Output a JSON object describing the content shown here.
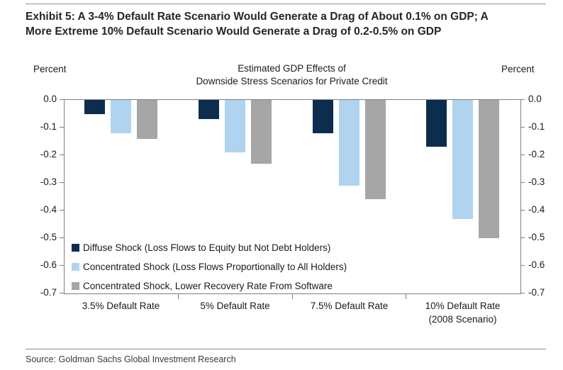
{
  "header": {
    "exhibit_title_line1": "Exhibit 5: A 3-4% Default Rate Scenario Would Generate a Drag of About 0.1% on GDP; A",
    "exhibit_title_line2": "More Extreme 10% Default Scenario Would Generate a Drag of 0.2-0.5% on GDP"
  },
  "footer": {
    "source": "Source: Goldman Sachs Global Investment Research"
  },
  "colors": {
    "navy": "#0d2d4f",
    "light_blue": "#b0d4ef",
    "gray": "#a6a6a6",
    "axis": "#7f7f7f",
    "rule": "#8c8c8c",
    "text": "#1a1a1a"
  },
  "chart_data": {
    "type": "bar",
    "title": "Estimated GDP Effects of\nDownside Stress Scenarios for Private Credit",
    "axis_label_left": "Percent",
    "axis_label_right": "Percent",
    "categories": [
      "3.5% Default Rate",
      "5% Default Rate",
      "7.5% Default Rate",
      "10% Default Rate\n(2008 Scenario)"
    ],
    "series": [
      {
        "name": "Diffuse Shock (Loss Flows to Equity but Not Debt Holders)",
        "color": "#0d2d4f",
        "values": [
          -0.05,
          -0.07,
          -0.12,
          -0.17
        ]
      },
      {
        "name": "Concentrated Shock (Loss Flows Proportionally to All Holders)",
        "color": "#b0d4ef",
        "values": [
          -0.12,
          -0.19,
          -0.31,
          -0.43
        ]
      },
      {
        "name": "Concentrated Shock, Lower Recovery Rate From Software",
        "color": "#a6a6a6",
        "values": [
          -0.14,
          -0.23,
          -0.36,
          -0.5
        ]
      }
    ],
    "ylabel": "",
    "xlabel": "",
    "ylim": [
      -0.7,
      0
    ],
    "yticks": [
      "0.0",
      "-0.1",
      "-0.2",
      "-0.3",
      "-0.4",
      "-0.5",
      "-0.6",
      "-0.7"
    ],
    "grid": false,
    "legend_position": "inside-bottom-left"
  }
}
